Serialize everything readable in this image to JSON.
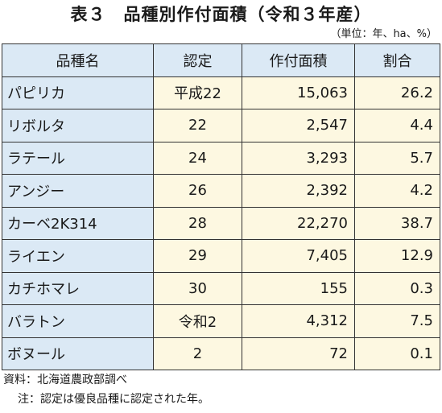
{
  "title": "表３　品種別作付面積（令和３年産）",
  "unit_note": "（単位：年、ha、%）",
  "table": {
    "headers": [
      "品種名",
      "認定",
      "作付面積",
      "割合"
    ],
    "rows": [
      {
        "name": "パピリカ",
        "cert": "平成22",
        "area": "15,063",
        "share": "26.2"
      },
      {
        "name": "リボルタ",
        "cert": "22",
        "area": "2,547",
        "share": "4.4"
      },
      {
        "name": "ラテール",
        "cert": "24",
        "area": "3,293",
        "share": "5.7"
      },
      {
        "name": "アンジー",
        "cert": "26",
        "area": "2,392",
        "share": "4.2"
      },
      {
        "name": "カーベ2K314",
        "cert": "28",
        "area": "22,270",
        "share": "38.7"
      },
      {
        "name": "ライエン",
        "cert": "29",
        "area": "7,405",
        "share": "12.9"
      },
      {
        "name": "カチホマレ",
        "cert": "30",
        "area": "155",
        "share": "0.3"
      },
      {
        "name": "バラトン",
        "cert": "令和2",
        "area": "4,312",
        "share": "7.5"
      },
      {
        "name": "ボヌール",
        "cert": "2",
        "area": "72",
        "share": "0.1"
      }
    ]
  },
  "notes": {
    "source": "資料：北海道農政部調べ",
    "note": "注：認定は優良品種に認定された年。"
  },
  "colors": {
    "header_bg": "#dbe9f5",
    "name_col_bg": "#dbe9f5",
    "value_bg": "#fdf8e1"
  }
}
